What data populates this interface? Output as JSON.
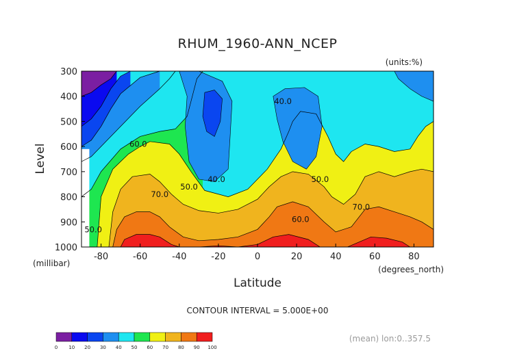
{
  "chart_data": {
    "type": "contour",
    "title": "RHUM_1960-ANN_NCEP",
    "units": "(units:%)",
    "xlabel": "Latitude",
    "ylabel": "Level",
    "x_unit_label": "(degrees_north)",
    "y_unit_label": "(millibar)",
    "xlim": [
      -90,
      90
    ],
    "ylim": [
      1000,
      300
    ],
    "x_ticks": [
      "-80",
      "-60",
      "-40",
      "-20",
      "0",
      "20",
      "40",
      "60",
      "80"
    ],
    "y_ticks": [
      "300",
      "400",
      "500",
      "600",
      "700",
      "800",
      "900",
      "1000"
    ],
    "contour_interval": "CONTOUR INTERVAL = 5.000E+00",
    "footer": "(mean) lon:0..357.5",
    "colorbar": {
      "levels": [
        "0",
        "10",
        "20",
        "30",
        "40",
        "50",
        "60",
        "70",
        "80",
        "90",
        "100"
      ],
      "colors": [
        "#7b1fa2",
        "#0a0af0",
        "#0a46f0",
        "#1e8ff0",
        "#1ee6f0",
        "#1ee650",
        "#f0f014",
        "#f0b41e",
        "#f07814",
        "#f01e1e"
      ]
    },
    "contour_labels": [
      {
        "text": "40.0",
        "lat": 13,
        "lev": 420
      },
      {
        "text": "60.0",
        "lat": -61,
        "lev": 590
      },
      {
        "text": "50.0",
        "lat": -35,
        "lev": 760
      },
      {
        "text": "40.0",
        "lat": -21,
        "lev": 730
      },
      {
        "text": "50.0",
        "lat": 32,
        "lev": 730
      },
      {
        "text": "70.0",
        "lat": -50,
        "lev": 790
      },
      {
        "text": "60.0",
        "lat": 22,
        "lev": 890
      },
      {
        "text": "70.0",
        "lat": 53,
        "lev": 840
      },
      {
        "text": "50.0",
        "lat": -84,
        "lev": 930
      }
    ],
    "series": [
      {
        "name": "10-20",
        "values": [
          [
            -90,
            400
          ],
          [
            -85,
            385
          ],
          [
            -80,
            355
          ],
          [
            -75,
            330
          ],
          [
            -72,
            300
          ]
        ]
      },
      {
        "name": "20-30",
        "values": [
          [
            -90,
            520
          ],
          [
            -85,
            490
          ],
          [
            -80,
            440
          ],
          [
            -75,
            370
          ],
          [
            -70,
            320
          ],
          [
            -65,
            300
          ]
        ]
      },
      {
        "name": "30-40",
        "values": [
          [
            -90,
            600
          ],
          [
            -85,
            575
          ],
          [
            -80,
            520
          ],
          [
            -75,
            450
          ],
          [
            -70,
            390
          ],
          [
            -60,
            325
          ],
          [
            -50,
            300
          ]
        ]
      },
      {
        "name": "40-50",
        "values": [
          [
            -90,
            660
          ],
          [
            -85,
            640
          ],
          [
            -80,
            600
          ],
          [
            -70,
            520
          ],
          [
            -60,
            440
          ],
          [
            -50,
            370
          ],
          [
            -45,
            330
          ],
          [
            -42,
            300
          ]
        ]
      },
      {
        "name": "50-60",
        "values": [
          [
            -90,
            800
          ],
          [
            -85,
            770
          ],
          [
            -80,
            700
          ],
          [
            -70,
            610
          ],
          [
            -60,
            560
          ],
          [
            -50,
            540
          ],
          [
            -42,
            530
          ],
          [
            -36,
            480
          ],
          [
            -33,
            390
          ],
          [
            -31,
            330
          ],
          [
            -28,
            300
          ]
        ]
      },
      {
        "name": "60-70",
        "values": [
          [
            -90,
            1000
          ],
          [
            -82,
            1000
          ],
          [
            -80,
            800
          ],
          [
            -74,
            690
          ],
          [
            -66,
            630
          ],
          [
            -60,
            600
          ],
          [
            -55,
            580
          ],
          [
            -45,
            590
          ],
          [
            -40,
            630
          ],
          [
            -34,
            700
          ],
          [
            -27,
            775
          ],
          [
            -15,
            800
          ],
          [
            -5,
            770
          ],
          [
            5,
            690
          ],
          [
            12,
            610
          ],
          [
            16,
            540
          ],
          [
            18,
            500
          ],
          [
            22,
            460
          ],
          [
            30,
            470
          ],
          [
            36,
            560
          ],
          [
            40,
            630
          ],
          [
            44,
            660
          ],
          [
            48,
            620
          ],
          [
            55,
            590
          ],
          [
            62,
            600
          ],
          [
            70,
            620
          ],
          [
            78,
            610
          ],
          [
            82,
            560
          ],
          [
            86,
            520
          ],
          [
            90,
            500
          ]
        ]
      },
      {
        "name": "70-80",
        "values": [
          [
            -90,
            1000
          ],
          [
            -76,
            1000
          ],
          [
            -74,
            860
          ],
          [
            -70,
            770
          ],
          [
            -64,
            720
          ],
          [
            -55,
            710
          ],
          [
            -50,
            740
          ],
          [
            -44,
            790
          ],
          [
            -38,
            830
          ],
          [
            -30,
            855
          ],
          [
            -20,
            865
          ],
          [
            -10,
            850
          ],
          [
            0,
            810
          ],
          [
            6,
            760
          ],
          [
            12,
            720
          ],
          [
            18,
            700
          ],
          [
            26,
            710
          ],
          [
            34,
            760
          ],
          [
            38,
            800
          ],
          [
            44,
            830
          ],
          [
            50,
            790
          ],
          [
            55,
            720
          ],
          [
            62,
            700
          ],
          [
            70,
            720
          ],
          [
            78,
            700
          ],
          [
            84,
            690
          ],
          [
            90,
            700
          ]
        ]
      },
      {
        "name": "80-90",
        "values": [
          [
            -90,
            1000
          ],
          [
            -74,
            1000
          ],
          [
            -72,
            930
          ],
          [
            -68,
            880
          ],
          [
            -62,
            860
          ],
          [
            -55,
            860
          ],
          [
            -50,
            880
          ],
          [
            -45,
            920
          ],
          [
            -38,
            960
          ],
          [
            -30,
            975
          ],
          [
            -20,
            970
          ],
          [
            -10,
            960
          ],
          [
            0,
            930
          ],
          [
            6,
            880
          ],
          [
            10,
            840
          ],
          [
            18,
            820
          ],
          [
            26,
            840
          ],
          [
            34,
            900
          ],
          [
            40,
            940
          ],
          [
            48,
            920
          ],
          [
            55,
            850
          ],
          [
            62,
            840
          ],
          [
            70,
            860
          ],
          [
            78,
            880
          ],
          [
            84,
            900
          ],
          [
            90,
            930
          ]
        ]
      },
      {
        "name": "90-100",
        "values": [
          [
            -90,
            1000
          ],
          [
            -70,
            1000
          ],
          [
            -68,
            970
          ],
          [
            -62,
            950
          ],
          [
            -55,
            950
          ],
          [
            -50,
            960
          ],
          [
            -44,
            990
          ],
          [
            -40,
            1000
          ],
          [
            -30,
            1000
          ],
          [
            -20,
            995
          ],
          [
            -10,
            1000
          ],
          [
            0,
            990
          ],
          [
            8,
            960
          ],
          [
            16,
            950
          ],
          [
            26,
            970
          ],
          [
            32,
            1000
          ],
          [
            46,
            1000
          ],
          [
            52,
            980
          ],
          [
            58,
            960
          ],
          [
            66,
            965
          ],
          [
            74,
            980
          ],
          [
            78,
            1000
          ]
        ]
      }
    ]
  }
}
